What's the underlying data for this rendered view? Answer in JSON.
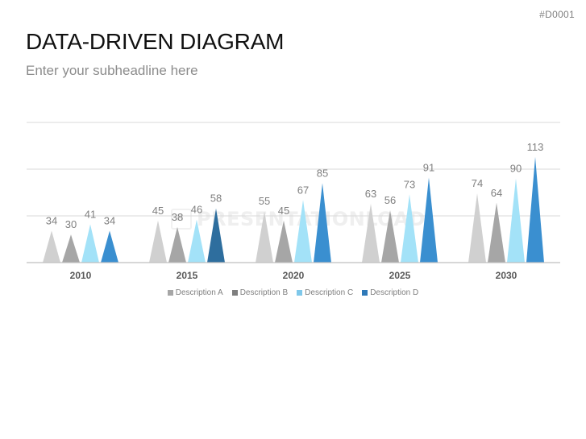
{
  "header": {
    "slide_id": "#D0001",
    "title": "DATA-DRIVEN DIAGRAM",
    "subtitle": "Enter your subheadline here"
  },
  "watermark": {
    "text": "PRESENTATIONLOAD"
  },
  "colors": {
    "series": [
      "#d0d0d0",
      "#a6a6a6",
      "#a3e2f8",
      "#3a8fd0"
    ],
    "highlight_2015_d": "#2e6e9e",
    "label": "#7f7f7f",
    "gridline": "#d9d9d9",
    "axis": "#bfbfbf"
  },
  "chart_data": {
    "type": "bar",
    "shape": "triangle",
    "categories": [
      "2010",
      "2015",
      "2020",
      "2025",
      "2030"
    ],
    "series": [
      {
        "name": "Description A",
        "values": [
          34,
          45,
          55,
          63,
          74
        ]
      },
      {
        "name": "Description B",
        "values": [
          30,
          38,
          45,
          56,
          64
        ]
      },
      {
        "name": "Description C",
        "values": [
          41,
          46,
          67,
          73,
          90
        ]
      },
      {
        "name": "Description D",
        "values": [
          34,
          58,
          85,
          91,
          113
        ]
      }
    ],
    "ylim": [
      0,
      150
    ],
    "gridlines": [
      50,
      100,
      150
    ],
    "data_labels": true,
    "legend_position": "bottom"
  }
}
